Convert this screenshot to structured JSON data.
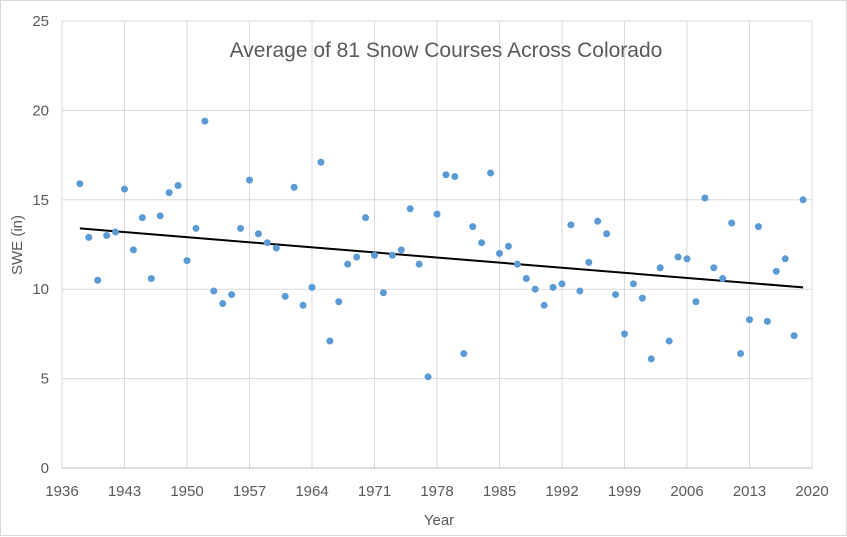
{
  "chart_data": {
    "type": "scatter",
    "title": "Average of 81 Snow Courses Across Colorado",
    "xlabel": "Year",
    "ylabel": "SWE (in)",
    "xlim": [
      1936,
      2020
    ],
    "ylim": [
      0,
      25
    ],
    "x_ticks": [
      1936,
      1943,
      1950,
      1957,
      1964,
      1971,
      1978,
      1985,
      1992,
      1999,
      2006,
      2013,
      2020
    ],
    "y_ticks": [
      0,
      5,
      10,
      15,
      20,
      25
    ],
    "grid": true,
    "legend": "none",
    "point_color": "#5b9bd5",
    "trendline_color": "#000000",
    "points": [
      {
        "x": 1938,
        "y": 15.9
      },
      {
        "x": 1939,
        "y": 12.9
      },
      {
        "x": 1940,
        "y": 10.5
      },
      {
        "x": 1941,
        "y": 13.0
      },
      {
        "x": 1942,
        "y": 13.2
      },
      {
        "x": 1943,
        "y": 15.6
      },
      {
        "x": 1944,
        "y": 12.2
      },
      {
        "x": 1945,
        "y": 14.0
      },
      {
        "x": 1946,
        "y": 10.6
      },
      {
        "x": 1947,
        "y": 14.1
      },
      {
        "x": 1948,
        "y": 15.4
      },
      {
        "x": 1949,
        "y": 15.8
      },
      {
        "x": 1950,
        "y": 11.6
      },
      {
        "x": 1951,
        "y": 13.4
      },
      {
        "x": 1952,
        "y": 19.4
      },
      {
        "x": 1953,
        "y": 9.9
      },
      {
        "x": 1954,
        "y": 9.2
      },
      {
        "x": 1955,
        "y": 9.7
      },
      {
        "x": 1956,
        "y": 13.4
      },
      {
        "x": 1957,
        "y": 16.1
      },
      {
        "x": 1958,
        "y": 13.1
      },
      {
        "x": 1959,
        "y": 12.6
      },
      {
        "x": 1960,
        "y": 12.3
      },
      {
        "x": 1961,
        "y": 9.6
      },
      {
        "x": 1962,
        "y": 15.7
      },
      {
        "x": 1963,
        "y": 9.1
      },
      {
        "x": 1964,
        "y": 10.1
      },
      {
        "x": 1965,
        "y": 17.1
      },
      {
        "x": 1966,
        "y": 7.1
      },
      {
        "x": 1967,
        "y": 9.3
      },
      {
        "x": 1968,
        "y": 11.4
      },
      {
        "x": 1969,
        "y": 11.8
      },
      {
        "x": 1970,
        "y": 14.0
      },
      {
        "x": 1971,
        "y": 11.9
      },
      {
        "x": 1972,
        "y": 9.8
      },
      {
        "x": 1973,
        "y": 11.9
      },
      {
        "x": 1974,
        "y": 12.2
      },
      {
        "x": 1975,
        "y": 14.5
      },
      {
        "x": 1976,
        "y": 11.4
      },
      {
        "x": 1977,
        "y": 5.1
      },
      {
        "x": 1978,
        "y": 14.2
      },
      {
        "x": 1979,
        "y": 16.4
      },
      {
        "x": 1980,
        "y": 16.3
      },
      {
        "x": 1981,
        "y": 6.4
      },
      {
        "x": 1982,
        "y": 13.5
      },
      {
        "x": 1983,
        "y": 12.6
      },
      {
        "x": 1984,
        "y": 16.5
      },
      {
        "x": 1985,
        "y": 12.0
      },
      {
        "x": 1986,
        "y": 12.4
      },
      {
        "x": 1987,
        "y": 11.4
      },
      {
        "x": 1988,
        "y": 10.6
      },
      {
        "x": 1989,
        "y": 10.0
      },
      {
        "x": 1990,
        "y": 9.1
      },
      {
        "x": 1991,
        "y": 10.1
      },
      {
        "x": 1992,
        "y": 10.3
      },
      {
        "x": 1993,
        "y": 13.6
      },
      {
        "x": 1994,
        "y": 9.9
      },
      {
        "x": 1995,
        "y": 11.5
      },
      {
        "x": 1996,
        "y": 13.8
      },
      {
        "x": 1997,
        "y": 13.1
      },
      {
        "x": 1998,
        "y": 9.7
      },
      {
        "x": 1999,
        "y": 7.5
      },
      {
        "x": 2000,
        "y": 10.3
      },
      {
        "x": 2001,
        "y": 9.5
      },
      {
        "x": 2002,
        "y": 6.1
      },
      {
        "x": 2003,
        "y": 11.2
      },
      {
        "x": 2004,
        "y": 7.1
      },
      {
        "x": 2005,
        "y": 11.8
      },
      {
        "x": 2006,
        "y": 11.7
      },
      {
        "x": 2007,
        "y": 9.3
      },
      {
        "x": 2008,
        "y": 15.1
      },
      {
        "x": 2009,
        "y": 11.2
      },
      {
        "x": 2010,
        "y": 10.6
      },
      {
        "x": 2011,
        "y": 13.7
      },
      {
        "x": 2012,
        "y": 6.4
      },
      {
        "x": 2013,
        "y": 8.3
      },
      {
        "x": 2014,
        "y": 13.5
      },
      {
        "x": 2015,
        "y": 8.2
      },
      {
        "x": 2016,
        "y": 11.0
      },
      {
        "x": 2017,
        "y": 11.7
      },
      {
        "x": 2018,
        "y": 7.4
      },
      {
        "x": 2019,
        "y": 15.0
      }
    ],
    "trendline": {
      "x": [
        1938,
        2019
      ],
      "y": [
        13.4,
        10.1
      ]
    }
  }
}
